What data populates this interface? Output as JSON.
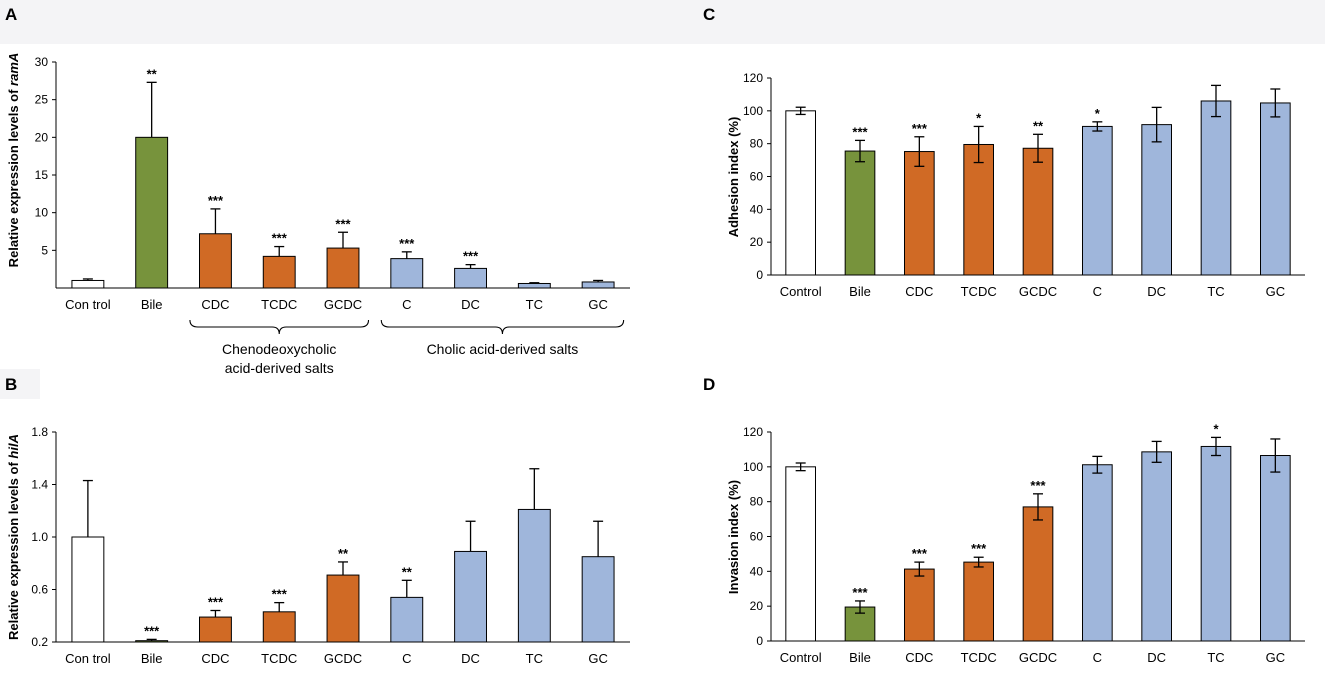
{
  "panels": [
    {
      "label": "A",
      "chart_data": {
        "type": "bar",
        "ylabel_prefix": "Relative expression levels of ",
        "ylabel_gene": "ramA",
        "ylim": [
          0,
          30
        ],
        "yticks": [
          "5",
          "10",
          "15",
          "20",
          "25",
          "30"
        ],
        "categories": [
          "Con trol",
          "Bile",
          "CDC",
          "TCDC",
          "GCDC",
          "C",
          "DC",
          "TC",
          "GC"
        ],
        "values": [
          1.0,
          20.0,
          7.2,
          4.2,
          5.3,
          3.9,
          2.6,
          0.6,
          0.8
        ],
        "errors": [
          0.2,
          7.3,
          3.3,
          1.3,
          2.1,
          0.9,
          0.5,
          0.1,
          0.2
        ],
        "error_style": "upper",
        "significance": [
          "",
          "**",
          "***",
          "***",
          "***",
          "***",
          "***",
          "",
          ""
        ],
        "groups": [
          {
            "label_lines": [
              "Chenodeoxycholic",
              "acid-derived salts"
            ],
            "from": 2,
            "to": 4
          },
          {
            "label_lines": [
              "Cholic acid-derived salts"
            ],
            "from": 5,
            "to": 8
          }
        ]
      }
    },
    {
      "label": "B",
      "chart_data": {
        "type": "bar",
        "ylabel_prefix": "Relative expression levels of ",
        "ylabel_gene": "hilA",
        "ylim": [
          0.2,
          1.8
        ],
        "yticks": [
          "0.2",
          "0.6",
          "1.0",
          "1.4",
          "1.8"
        ],
        "categories": [
          "Con trol",
          "Bile",
          "CDC",
          "TCDC",
          "GCDC",
          "C",
          "DC",
          "TC",
          "GC"
        ],
        "values": [
          1.0,
          0.21,
          0.39,
          0.43,
          0.71,
          0.54,
          0.89,
          1.21,
          0.85
        ],
        "errors": [
          0.43,
          0.01,
          0.05,
          0.07,
          0.1,
          0.13,
          0.23,
          0.31,
          0.27
        ],
        "error_style": "upper",
        "significance": [
          "",
          "***",
          "***",
          "***",
          "**",
          "**",
          "",
          "",
          ""
        ]
      }
    },
    {
      "label": "C",
      "chart_data": {
        "type": "bar",
        "ylabel_prefix": "Adhesion index (%)",
        "ylabel_gene": "",
        "ylim": [
          0,
          120
        ],
        "yticks": [
          "0",
          "20",
          "40",
          "60",
          "80",
          "100",
          "120"
        ],
        "categories": [
          "Control",
          "Bile",
          "CDC",
          "TCDC",
          "GCDC",
          "C",
          "DC",
          "TC",
          "GC"
        ],
        "values": [
          100,
          75.5,
          75.2,
          79.5,
          77.2,
          90.5,
          91.6,
          106,
          104.8
        ],
        "errors": [
          2.2,
          6.5,
          9.0,
          11.0,
          8.5,
          2.8,
          10.5,
          9.5,
          8.5
        ],
        "error_style": "both",
        "significance": [
          "",
          "***",
          "***",
          "*",
          "**",
          "*",
          "",
          "",
          ""
        ]
      }
    },
    {
      "label": "D",
      "chart_data": {
        "type": "bar",
        "ylabel_prefix": "Invasion index (%)",
        "ylabel_gene": "",
        "ylim": [
          0,
          120
        ],
        "yticks": [
          "0",
          "20",
          "40",
          "60",
          "80",
          "100",
          "120"
        ],
        "categories": [
          "Control",
          "Bile",
          "CDC",
          "TCDC",
          "GCDC",
          "C",
          "DC",
          "TC",
          "GC"
        ],
        "values": [
          100,
          19.5,
          41.3,
          45.3,
          77.0,
          101.2,
          108.6,
          111.7,
          106.5
        ],
        "errors": [
          2.2,
          3.5,
          4.0,
          2.8,
          7.5,
          4.8,
          6.0,
          5.2,
          9.5
        ],
        "error_style": "both",
        "significance": [
          "",
          "***",
          "***",
          "***",
          "***",
          "",
          "",
          "*",
          ""
        ]
      }
    }
  ],
  "colors": [
    "#ffffff",
    "#77933c",
    "#d06a25",
    "#d06a25",
    "#d06a25",
    "#9fb6db",
    "#9fb6db",
    "#9fb6db",
    "#9fb6db"
  ],
  "edge_color": "#000000"
}
